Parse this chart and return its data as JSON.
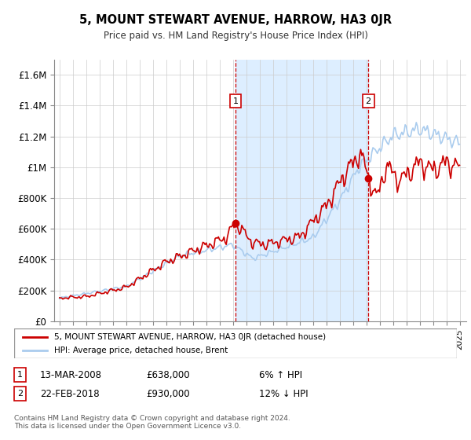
{
  "title": "5, MOUNT STEWART AVENUE, HARROW, HA3 0JR",
  "subtitle": "Price paid vs. HM Land Registry's House Price Index (HPI)",
  "ylabel_ticks": [
    "£0",
    "£200K",
    "£400K",
    "£600K",
    "£800K",
    "£1M",
    "£1.2M",
    "£1.4M",
    "£1.6M"
  ],
  "ylim": [
    0,
    1700000
  ],
  "ytick_values": [
    0,
    200000,
    400000,
    600000,
    800000,
    1000000,
    1200000,
    1400000,
    1600000
  ],
  "xtick_years": [
    1995,
    1996,
    1997,
    1998,
    1999,
    2000,
    2001,
    2002,
    2003,
    2004,
    2005,
    2006,
    2007,
    2008,
    2009,
    2010,
    2011,
    2012,
    2013,
    2014,
    2015,
    2016,
    2017,
    2018,
    2019,
    2020,
    2021,
    2022,
    2023,
    2024,
    2025
  ],
  "hpi_color": "#aaccee",
  "price_color": "#cc0000",
  "marker1_year": 2008.2,
  "marker1_price": 638000,
  "marker2_year": 2018.15,
  "marker2_price": 930000,
  "vline1_year": 2008.2,
  "vline2_year": 2018.15,
  "shade_color": "#ddeeff",
  "legend_label_red": "5, MOUNT STEWART AVENUE, HARROW, HA3 0JR (detached house)",
  "legend_label_blue": "HPI: Average price, detached house, Brent",
  "table_rows": [
    {
      "num": "1",
      "date": "13-MAR-2008",
      "price": "£638,000",
      "hpi": "6% ↑ HPI"
    },
    {
      "num": "2",
      "date": "22-FEB-2018",
      "price": "£930,000",
      "hpi": "12% ↓ HPI"
    }
  ],
  "footnote": "Contains HM Land Registry data © Crown copyright and database right 2024.\nThis data is licensed under the Open Government Licence v3.0.",
  "bg_color": "#ffffff",
  "grid_color": "#cccccc"
}
